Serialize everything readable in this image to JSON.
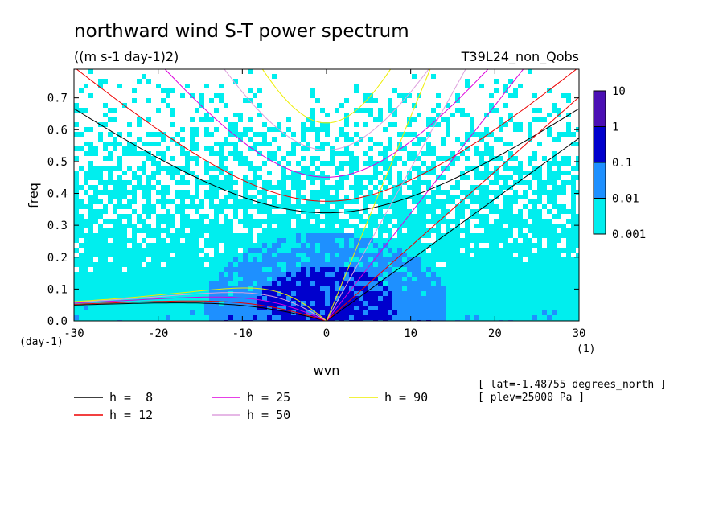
{
  "chart_data": {
    "type": "heatmap",
    "title": "northward wind S-T power spectrum",
    "subtitle": "((m s-1 day-1)2)",
    "run_label": "T39L24_non_Qobs",
    "xlabel": "wvn",
    "ylabel": "freq",
    "x_unit": "(1)",
    "y_unit": "(day-1)",
    "xlim": [
      -30,
      30
    ],
    "ylim": [
      0,
      0.79
    ],
    "xticks": [
      -30,
      -20,
      -10,
      0,
      10,
      20,
      30
    ],
    "yticks": [
      0.0,
      0.1,
      0.2,
      0.3,
      0.4,
      0.5,
      0.6,
      0.7
    ],
    "xtick_labels": [
      "-30",
      "-20",
      "-10",
      "0",
      "10",
      "20",
      "30"
    ],
    "ytick_labels": [
      "0.0",
      "0.1",
      "0.2",
      "0.3",
      "0.4",
      "0.5",
      "0.6",
      "0.7"
    ],
    "colorbar": {
      "levels": [
        0.001,
        0.01,
        0.1,
        1,
        10
      ],
      "labels": [
        "0.001",
        "0.01",
        "0.1",
        "1",
        "10"
      ],
      "colors": [
        "#00eeee",
        "#1e90ff",
        "#0000cd",
        "#4b0fb4"
      ],
      "below_color": "#ffffff"
    },
    "dispersion_curves": [
      {
        "label": "h =  8",
        "h": 8,
        "color": "#000000"
      },
      {
        "label": "h = 12",
        "h": 12,
        "color": "#ee0000"
      },
      {
        "label": "h = 25",
        "h": 25,
        "color": "#dd00dd"
      },
      {
        "label": "h = 50",
        "h": 50,
        "color": "#dda0dd"
      },
      {
        "label": "h = 90",
        "h": 90,
        "color": "#eeee00"
      }
    ],
    "annotations": [
      "[ lat=-1.48755 degrees_north ]",
      "[ plev=25000 Pa ]"
    ]
  }
}
